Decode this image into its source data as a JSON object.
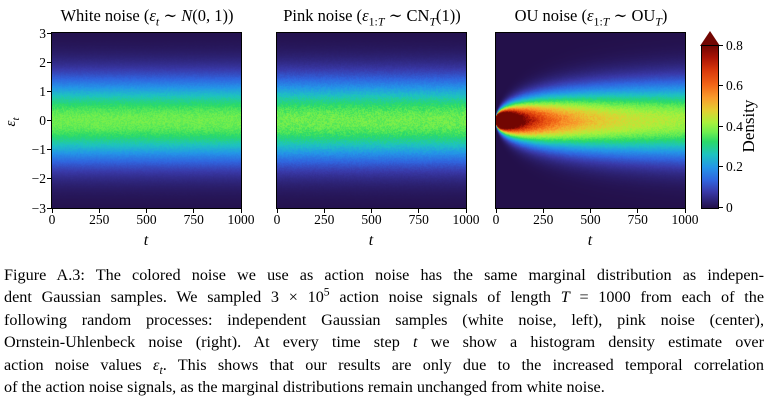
{
  "figure": {
    "panels": [
      {
        "id": "white",
        "title_html": "White noise (<i>ε<sub>t</sub></i> ∼ <span class=\"mcal\">N</span>(0, 1))",
        "process": "white"
      },
      {
        "id": "pink",
        "title_html": "Pink noise (<i>ε</i><sub>1:<i>T</i></sub> ∼ CN<sub><i>T</i></sub>(1))",
        "process": "pink"
      },
      {
        "id": "ou",
        "title_html": "OU noise (<i>ε</i><sub>1:<i>T</i></sub> ∼ OU<sub><i>T</i></sub>)",
        "process": "ou"
      }
    ],
    "yaxis": {
      "label_html": "<i>ε<sub>t</sub></i>",
      "ticks": [
        3,
        2,
        1,
        0,
        -1,
        -2,
        -3
      ],
      "range": [
        -3,
        3
      ]
    },
    "xaxis": {
      "label_html": "<i>t</i>",
      "ticks": [
        0,
        250,
        500,
        750,
        1000
      ],
      "range": [
        0,
        1000
      ]
    },
    "colorbar": {
      "label": "Density",
      "ticks": [
        0,
        0.2,
        0.4,
        0.6,
        0.8
      ],
      "max": 0.8,
      "overflow_arrow": true,
      "arrow_color": "#720602",
      "colormap_stops": [
        [
          0.0,
          "#23104a"
        ],
        [
          0.1,
          "#3939a8"
        ],
        [
          0.17,
          "#3064de"
        ],
        [
          0.25,
          "#2495e8"
        ],
        [
          0.33,
          "#1ec3c0"
        ],
        [
          0.41,
          "#2ada68"
        ],
        [
          0.47,
          "#70ef4f"
        ],
        [
          0.53,
          "#abf03b"
        ],
        [
          0.6,
          "#e3cf32"
        ],
        [
          0.68,
          "#f99c2c"
        ],
        [
          0.76,
          "#f26517"
        ],
        [
          0.85,
          "#d8380b"
        ],
        [
          0.93,
          "#a81305"
        ],
        [
          1.0,
          "#720602"
        ]
      ]
    }
  },
  "chart_data": [
    {
      "type": "heatmap",
      "title": "White noise (εt ~ N(0,1))",
      "xlabel": "t",
      "ylabel": "εt",
      "x_range": [
        0,
        1000
      ],
      "y_range": [
        -3,
        3
      ],
      "xticks": [
        0,
        250,
        500,
        750,
        1000
      ],
      "yticks": [
        3,
        2,
        1,
        0,
        -1,
        -2,
        -3
      ],
      "color_range": [
        0,
        0.8
      ],
      "colormap": "turbo-like (dark blue → cyan → green → orange → dark red)",
      "density": "time-invariant standard normal marginal; peak density ≈ 0.40 at εt = 0, ≈ 0.24 at |εt| = 1, ≈ 0.05 at |εt| = 2"
    },
    {
      "type": "heatmap",
      "title": "Pink noise (ε1:T ~ CNT(1))",
      "xlabel": "t",
      "ylabel": "εt",
      "x_range": [
        0,
        1000
      ],
      "y_range": [
        -3,
        3
      ],
      "xticks": [
        0,
        250,
        500,
        750,
        1000
      ],
      "color_range": [
        0,
        0.8
      ],
      "density": "same time-invariant standard normal marginal as white noise"
    },
    {
      "type": "heatmap",
      "title": "OU noise (ε1:T ~ OUT)",
      "xlabel": "t",
      "ylabel": "εt",
      "x_range": [
        0,
        1000
      ],
      "y_range": [
        -3,
        3
      ],
      "xticks": [
        0,
        250,
        500,
        750,
        1000
      ],
      "color_range": [
        0,
        0.8
      ],
      "density": "starts concentrated at εt = 0 (density > 0.8 for t ≲ 100, dark red blob), variance grows with t, approaching the standard normal marginal (peak ≈ 0.45) by t = 1000"
    }
  ],
  "caption": {
    "lines_html": [
      "Figure A.3: The colored noise we use as action noise has the same marginal distribution as indepen-",
      "dent Gaussian samples. We sampled 3 × 10<sup>5</sup> action noise signals of length <i>T</i> = 1000 from each of the",
      "following random processes: independent Gaussian samples (white noise, left), pink noise (center),",
      "Ornstein-Uhlenbeck noise (right). At every time step <i>t</i> we show a histogram density estimate over",
      "action noise values <i>ε<sub>t</sub></i>. This shows that our results are only due to the increased temporal correlation",
      "of the action noise signals, as the marginal distributions remain unchanged from white noise."
    ]
  }
}
